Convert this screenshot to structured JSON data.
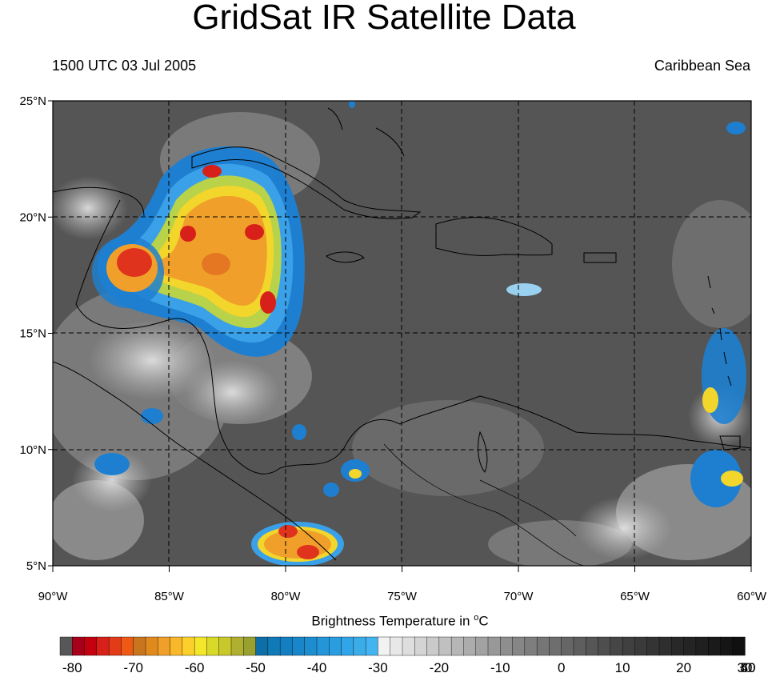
{
  "title": "GridSat IR Satellite Data",
  "subtitle_left": "1500 UTC 03 Jul 2005",
  "subtitle_right": "Caribbean Sea",
  "lat_ticks": [
    {
      "label": "25°N",
      "value": 25
    },
    {
      "label": "20°N",
      "value": 20
    },
    {
      "label": "15°N",
      "value": 15
    },
    {
      "label": "10°N",
      "value": 10
    },
    {
      "label": "5°N",
      "value": 5
    }
  ],
  "lon_ticks": [
    {
      "label": "90°W",
      "value": -90
    },
    {
      "label": "85°W",
      "value": -85
    },
    {
      "label": "80°W",
      "value": -80
    },
    {
      "label": "75°W",
      "value": -75
    },
    {
      "label": "70°W",
      "value": -70
    },
    {
      "label": "65°W",
      "value": -65
    },
    {
      "label": "60°W",
      "value": -60
    }
  ],
  "colorbar": {
    "title_text": "Brightness Temperature in ",
    "title_unit_deg": "o",
    "title_unit": "C",
    "tick_labels": [
      "-80",
      "-70",
      "-60",
      "-50",
      "-40",
      "-30",
      "-20",
      "-10",
      "0",
      "10",
      "20",
      "30",
      "40",
      "50"
    ],
    "min": -80,
    "max": 50
  }
}
